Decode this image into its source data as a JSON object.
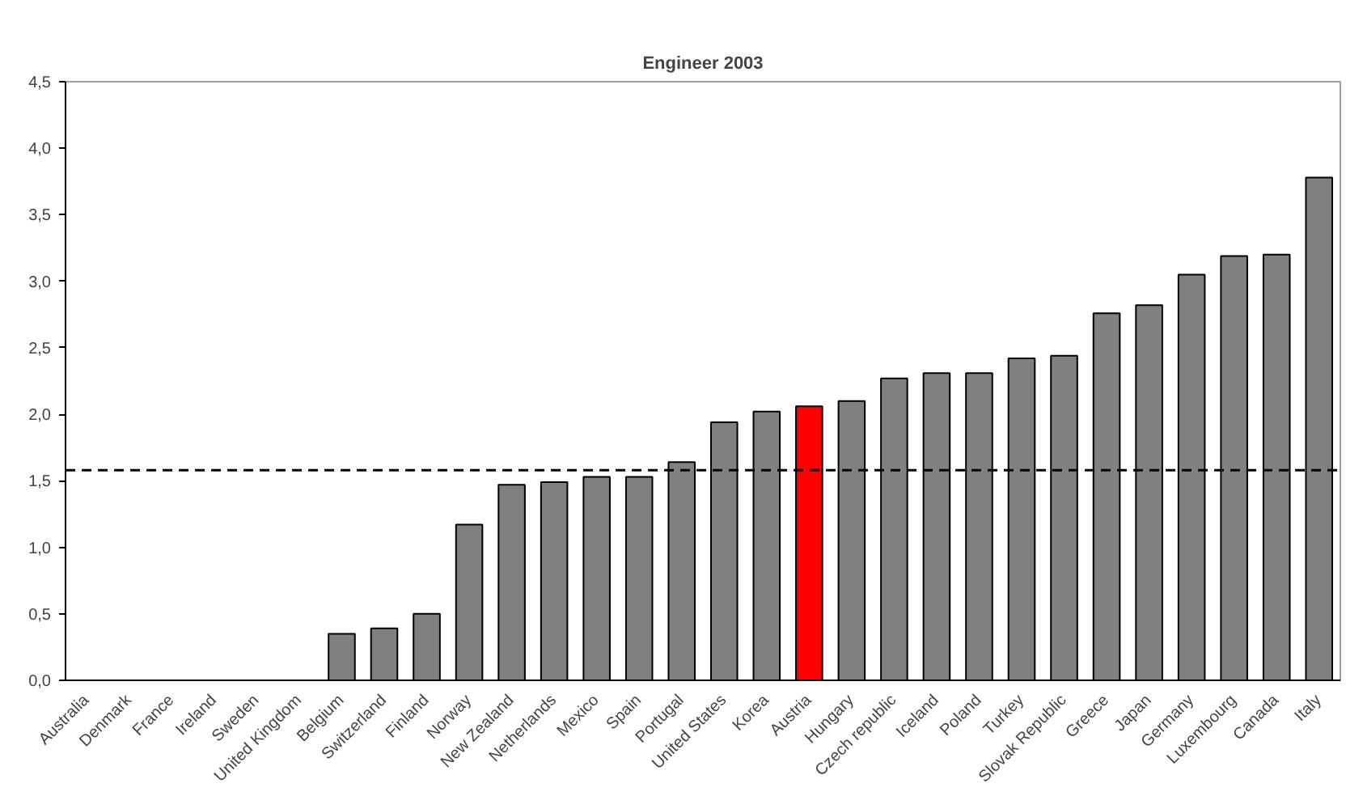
{
  "chart_data": {
    "type": "bar",
    "title": "Engineer 2003",
    "categories": [
      "Australia",
      "Denmark",
      "France",
      "Ireland",
      "Sweden",
      "United Kingdom",
      "Belgium",
      "Switzerland",
      "Finland",
      "Norway",
      "New Zealand",
      "Netherlands",
      "Mexico",
      "Spain",
      "Portugal",
      "United States",
      "Korea",
      "Austria",
      "Hungary",
      "Czech republic",
      "Iceland",
      "Poland",
      "Turkey",
      "Slovak Republic",
      "Greece",
      "Japan",
      "Germany",
      "Luxembourg",
      "Canada",
      "Italy"
    ],
    "values": [
      0,
      0,
      0,
      0,
      0,
      0,
      0.35,
      0.39,
      0.5,
      1.17,
      1.47,
      1.49,
      1.53,
      1.53,
      1.64,
      1.94,
      2.02,
      2.06,
      2.1,
      2.27,
      2.31,
      2.31,
      2.42,
      2.44,
      2.76,
      2.82,
      3.05,
      3.19,
      3.2,
      3.78
    ],
    "colors": [
      "#808080",
      "#808080",
      "#808080",
      "#808080",
      "#808080",
      "#808080",
      "#808080",
      "#808080",
      "#808080",
      "#808080",
      "#808080",
      "#808080",
      "#808080",
      "#808080",
      "#808080",
      "#808080",
      "#808080",
      "#ff0000",
      "#808080",
      "#808080",
      "#808080",
      "#808080",
      "#808080",
      "#808080",
      "#808080",
      "#808080",
      "#808080",
      "#808080",
      "#808080",
      "#808080"
    ],
    "ylim": [
      0,
      4.5
    ],
    "yticks": [
      {
        "value": 0,
        "label": "0,0"
      },
      {
        "value": 0.5,
        "label": "0,5"
      },
      {
        "value": 1,
        "label": "1,0"
      },
      {
        "value": 1.5,
        "label": "1,5"
      },
      {
        "value": 2,
        "label": "2,0"
      },
      {
        "value": 2.5,
        "label": "2,5"
      },
      {
        "value": 3,
        "label": "3,0"
      },
      {
        "value": 3.5,
        "label": "3,5"
      },
      {
        "value": 4,
        "label": "4,0"
      },
      {
        "value": 4.5,
        "label": "4,5"
      }
    ],
    "grid": false,
    "ref_lines": [
      {
        "axis": "y",
        "value": 1.58,
        "label": null,
        "color": "#000000",
        "line_style": "dashed"
      }
    ]
  }
}
